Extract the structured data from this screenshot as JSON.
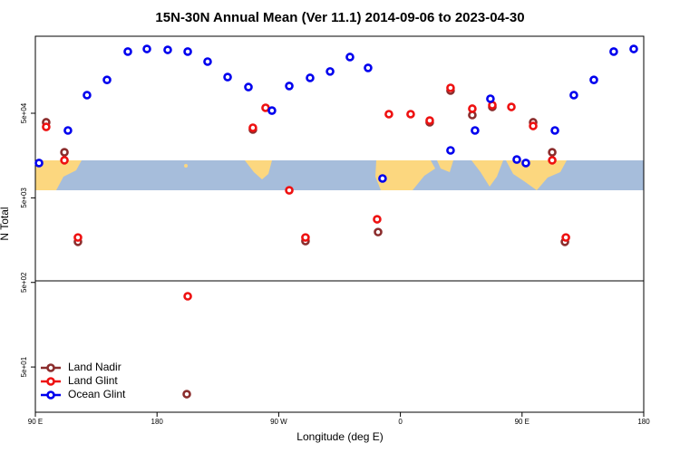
{
  "chart_data": {
    "type": "scatter",
    "title": "15N-30N Annual Mean (Ver 11.1)   2014-09-06 to 2023-04-30",
    "x_label": "Longitude (deg E)",
    "y_label": "N Total",
    "log_y": true,
    "legend": "bottom-left",
    "xlim": [
      90,
      540
    ],
    "xticks": [
      {
        "value": 90,
        "label": "90 E"
      },
      {
        "value": 180,
        "label": "180"
      },
      {
        "value": 270,
        "label": "90 W"
      },
      {
        "value": 360,
        "label": "0"
      },
      {
        "value": 450,
        "label": "90 E"
      },
      {
        "value": 540,
        "label": "180"
      }
    ],
    "ylim": [
      14.6,
      407000
    ],
    "yticks": [
      {
        "value": 50,
        "label": "5e+01"
      },
      {
        "value": 500,
        "label": "5e+02"
      },
      {
        "value": 5000,
        "label": "5e+03"
      },
      {
        "value": 50000,
        "label": "5e+04"
      }
    ],
    "series": [
      {
        "name": "Land Nadir",
        "color": "#8b2d2d",
        "x": [
          98.0,
          111.5,
          121.5,
          202.0,
          250.9,
          289.8,
          343.5,
          381.7,
          397.1,
          413.2,
          428.0,
          458.2,
          472.3,
          481.7
        ],
        "values": [
          39100,
          17300,
          1510,
          23.9,
          32100,
          1540,
          1970,
          39100,
          92700,
          47600,
          59400,
          39100,
          17300,
          1510
        ]
      },
      {
        "name": "Land Glint",
        "color": "#ee1111",
        "x": [
          98.0,
          111.5,
          121.5,
          202.7,
          250.9,
          260.3,
          277.8,
          289.8,
          342.8,
          351.5,
          367.6,
          381.7,
          397.1,
          413.2,
          428.0,
          442.1,
          458.2,
          472.3,
          482.4
        ],
        "values": [
          34500,
          13900,
          1700,
          343,
          33700,
          58000,
          6140,
          1700,
          2790,
          48800,
          48800,
          41000,
          99800,
          56600,
          62400,
          59400,
          35400,
          13900,
          1700
        ]
      },
      {
        "name": "Ocean Glint",
        "color": "#0000ee",
        "x": [
          92.7,
          114.1,
          128.2,
          143.0,
          158.4,
          172.5,
          187.9,
          202.7,
          217.4,
          232.2,
          247.6,
          265.0,
          277.8,
          293.2,
          308.0,
          322.7,
          336.1,
          346.8,
          397.1,
          415.2,
          426.6,
          446.1,
          452.8,
          474.3,
          488.3,
          503.1,
          517.8,
          532.6
        ],
        "values": [
          12900,
          31300,
          81900,
          124000,
          268000,
          288000,
          281000,
          268000,
          204000,
          134000,
          102000,
          53800,
          105000,
          131000,
          156000,
          231000,
          172000,
          8470,
          18200,
          31300,
          74200,
          14200,
          12900,
          31300,
          81900,
          124000,
          268000,
          288000
        ]
      }
    ]
  }
}
